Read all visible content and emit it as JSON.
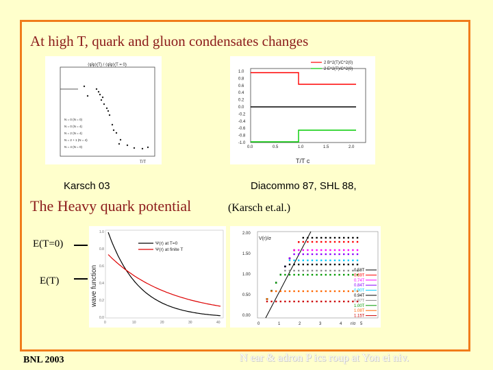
{
  "slide": {
    "title": "At high T, quark and gluon condensates changes",
    "subtitle": "The Heavy quark potential",
    "subtitle_note": "(Karsch et.al.)",
    "footer_left": "BNL 2003",
    "footer_right": "N    ear &    adron P    ics    roup at Yon  ei   niv."
  },
  "figures": {
    "karsch": {
      "caption": "Karsch 03",
      "header": "⟨ψ̄ψ⟩(T) / ⟨ψ̄ψ⟩(T = 0)",
      "xlabel": "T/T",
      "legend": [
        "N = 0 (N = 0)",
        "N = 0 (N = 4)",
        "N = 2 (N = 4)",
        "N = 2 + 1 (N = 4)",
        "N = 4 (N = 0)"
      ]
    },
    "diacommo": {
      "caption": "Diacommo 87,  SHL 88,",
      "xlabel": "T/T  c",
      "legend": [
        "2 B^2(T)/C^2(0)",
        "2 E^2(T)/C^2(0)"
      ],
      "colors": {
        "B": "#ff0000",
        "E": "#00cc00",
        "zero": "#000000"
      },
      "yticks": [
        "1.0",
        "0.8",
        "0.6",
        "0.4",
        "0.2",
        "0.0",
        "-0.2",
        "-0.4",
        "-0.6",
        "-0.8",
        "-1.0"
      ],
      "xticks": [
        "0.0",
        "0.5",
        "1.0",
        "1.5",
        "2.0"
      ]
    },
    "wavefunction": {
      "ylabel": "wave function",
      "legend": [
        "Ψ(r) at T=0",
        "Ψ(r) at finite T"
      ],
      "colors": {
        "T0": "#000000",
        "finite": "#dd0000"
      },
      "yticks": [
        "1.0",
        "0.8",
        "0.6",
        "0.4",
        "0.2",
        "0.0"
      ],
      "xticks": [
        "0",
        "10",
        "20",
        "30",
        "40"
      ]
    },
    "potential": {
      "ylabel": "V(r)/σ",
      "xlabel": "r/σ",
      "yticks": [
        "2.00",
        "1.50",
        "1.00",
        "0.50",
        "0.00"
      ],
      "xticks": [
        "0",
        "1",
        "2",
        "3",
        "4",
        "5"
      ],
      "series": [
        {
          "name": "0.58T",
          "color": "#000000"
        },
        {
          "name": "0.69T",
          "color": "#ff0000"
        },
        {
          "name": "0.74T",
          "color": "#ff00ff"
        },
        {
          "name": "0.84T",
          "color": "#8800ff"
        },
        {
          "name": "0.90T",
          "color": "#00ccff"
        },
        {
          "name": "0.94T",
          "color": "#000000"
        },
        {
          "name": "0.97T",
          "color": "#888888"
        },
        {
          "name": "1.00T",
          "color": "#009900"
        },
        {
          "name": "1.08T",
          "color": "#ff6600"
        },
        {
          "name": "1.15T",
          "color": "#cc0000"
        }
      ]
    }
  },
  "labels": {
    "e_t0": "E(T=0)",
    "e_t": "E(T)"
  }
}
